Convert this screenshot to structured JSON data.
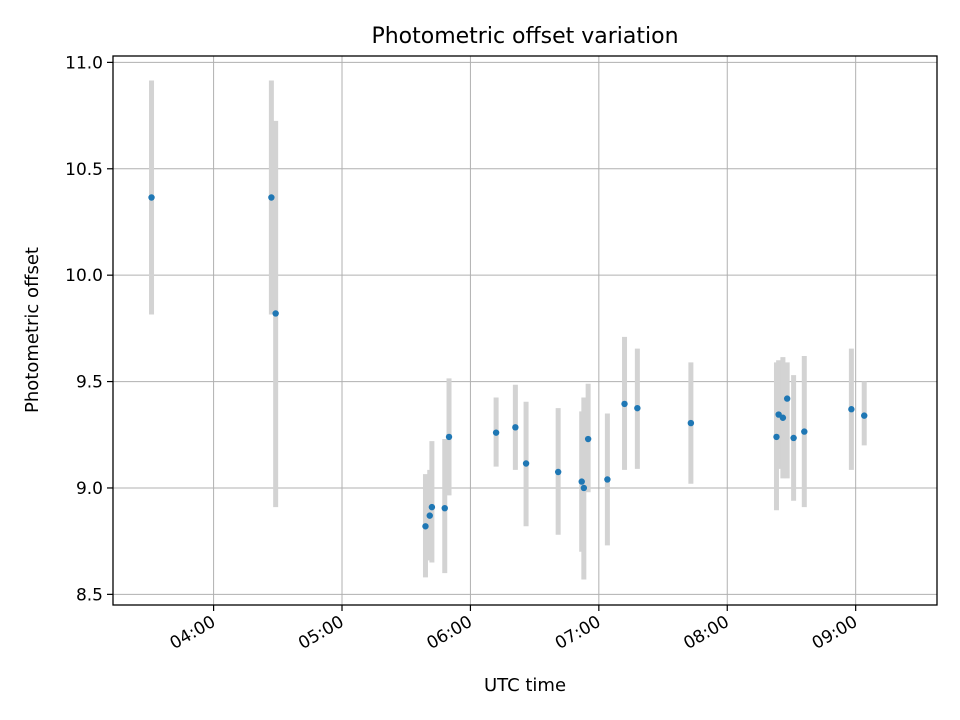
{
  "chart_data": {
    "type": "scatter",
    "title": "Photometric offset variation",
    "xlabel": "UTC time",
    "ylabel": "Photometric offset",
    "x_axis": "time",
    "xlim": [
      "03:13",
      "09:38"
    ],
    "ylim": [
      8.45,
      11.03
    ],
    "x_ticks": [
      "04:00",
      "05:00",
      "06:00",
      "07:00",
      "08:00",
      "09:00"
    ],
    "y_ticks": [
      "8.5",
      "9.0",
      "9.5",
      "10.0",
      "10.5",
      "11.0"
    ],
    "grid": true,
    "marker_color": "#1f77b4",
    "errorbar_color": "#d3d3d3",
    "series": [
      {
        "points": [
          {
            "t": "03:31",
            "y": 10.365,
            "lo": 9.815,
            "hi": 10.915
          },
          {
            "t": "04:27",
            "y": 10.365,
            "lo": 9.815,
            "hi": 10.915
          },
          {
            "t": "04:29",
            "y": 9.82,
            "lo": 8.91,
            "hi": 10.725
          },
          {
            "t": "05:39",
            "y": 8.82,
            "lo": 8.58,
            "hi": 9.065
          },
          {
            "t": "05:41",
            "y": 8.87,
            "lo": 8.66,
            "hi": 9.085
          },
          {
            "t": "05:42",
            "y": 8.91,
            "lo": 8.65,
            "hi": 9.22
          },
          {
            "t": "05:48",
            "y": 8.905,
            "lo": 8.6,
            "hi": 9.23
          },
          {
            "t": "05:50",
            "y": 9.24,
            "lo": 8.965,
            "hi": 9.515
          },
          {
            "t": "06:12",
            "y": 9.26,
            "lo": 9.1,
            "hi": 9.425
          },
          {
            "t": "06:21",
            "y": 9.285,
            "lo": 9.085,
            "hi": 9.485
          },
          {
            "t": "06:26",
            "y": 9.115,
            "lo": 8.82,
            "hi": 9.405
          },
          {
            "t": "06:41",
            "y": 9.075,
            "lo": 8.78,
            "hi": 9.375
          },
          {
            "t": "06:52",
            "y": 9.03,
            "lo": 8.7,
            "hi": 9.36
          },
          {
            "t": "06:53",
            "y": 9.0,
            "lo": 8.57,
            "hi": 9.425
          },
          {
            "t": "06:55",
            "y": 9.23,
            "lo": 8.98,
            "hi": 9.49
          },
          {
            "t": "07:04",
            "y": 9.04,
            "lo": 8.73,
            "hi": 9.35
          },
          {
            "t": "07:12",
            "y": 9.395,
            "lo": 9.085,
            "hi": 9.71
          },
          {
            "t": "07:18",
            "y": 9.375,
            "lo": 9.09,
            "hi": 9.655
          },
          {
            "t": "07:43",
            "y": 9.305,
            "lo": 9.02,
            "hi": 9.59
          },
          {
            "t": "08:23",
            "y": 9.24,
            "lo": 8.895,
            "hi": 9.59
          },
          {
            "t": "08:24",
            "y": 9.345,
            "lo": 9.09,
            "hi": 9.6
          },
          {
            "t": "08:26",
            "y": 9.33,
            "lo": 9.045,
            "hi": 9.615
          },
          {
            "t": "08:28",
            "y": 9.42,
            "lo": 9.045,
            "hi": 9.59
          },
          {
            "t": "08:31",
            "y": 9.235,
            "lo": 8.94,
            "hi": 9.53
          },
          {
            "t": "08:36",
            "y": 9.265,
            "lo": 8.91,
            "hi": 9.62
          },
          {
            "t": "08:58",
            "y": 9.37,
            "lo": 9.085,
            "hi": 9.655
          },
          {
            "t": "09:04",
            "y": 9.34,
            "lo": 9.2,
            "hi": 9.5
          }
        ]
      }
    ]
  }
}
